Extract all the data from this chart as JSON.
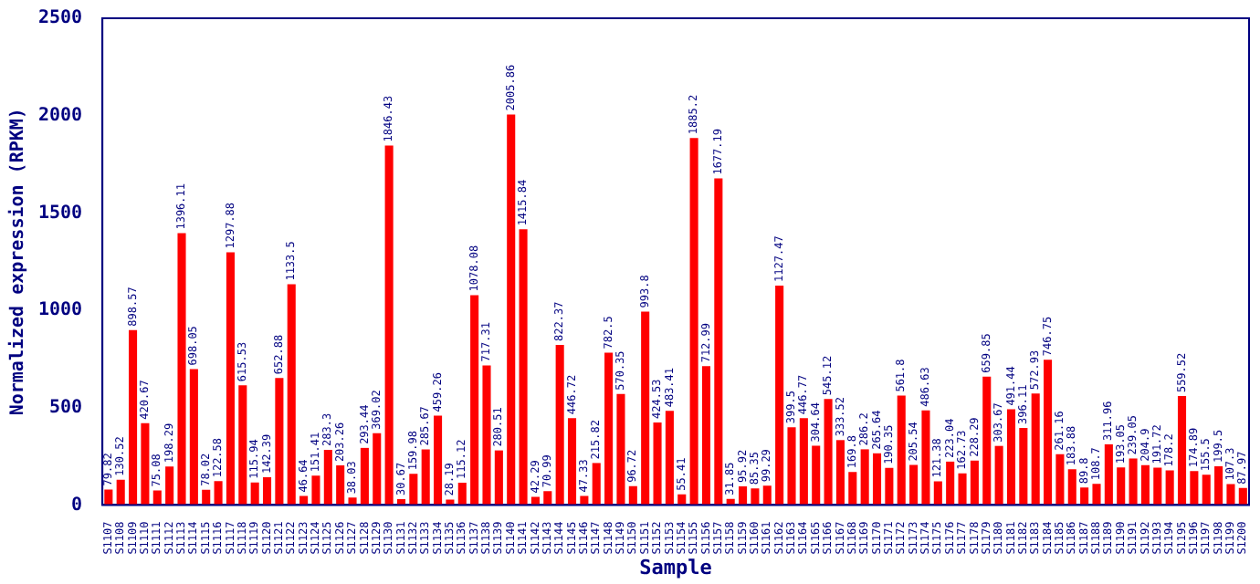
{
  "chart_data": {
    "type": "bar",
    "xlabel": "Sample",
    "ylabel": "Normalized expression (RPKM)",
    "categories": [
      "S1107",
      "S1108",
      "S1109",
      "S1110",
      "S1111",
      "S1112",
      "S1113",
      "S1114",
      "S1115",
      "S1116",
      "S1117",
      "S1118",
      "S1119",
      "S1120",
      "S1121",
      "S1122",
      "S1123",
      "S1124",
      "S1125",
      "S1126",
      "S1127",
      "S1128",
      "S1129",
      "S1130",
      "S1131",
      "S1132",
      "S1133",
      "S1134",
      "S1135",
      "S1136",
      "S1137",
      "S1138",
      "S1139",
      "S1140",
      "S1141",
      "S1142",
      "S1143",
      "S1144",
      "S1145",
      "S1146",
      "S1147",
      "S1148",
      "S1149",
      "S1150",
      "S1151",
      "S1152",
      "S1153",
      "S1154",
      "S1155",
      "S1156",
      "S1157",
      "S1158",
      "S1159",
      "S1160",
      "S1161",
      "S1162",
      "S1163",
      "S1164",
      "S1165",
      "S1166",
      "S1167",
      "S1168",
      "S1169",
      "S1170",
      "S1171",
      "S1172",
      "S1173",
      "S1174",
      "S1175",
      "S1176",
      "S1177",
      "S1178",
      "S1179",
      "S1180",
      "S1181",
      "S1182",
      "S1183",
      "S1184",
      "S1185",
      "S1186",
      "S1187",
      "S1188",
      "S1189",
      "S1190",
      "S1191",
      "S1192",
      "S1193",
      "S1194",
      "S1195",
      "S1196",
      "S1197",
      "S1198",
      "S1199",
      "S1200"
    ],
    "values": [
      79.82,
      130.52,
      898.57,
      420.67,
      75.08,
      198.29,
      1396.11,
      698.05,
      78.02,
      122.58,
      1297.88,
      615.53,
      115.94,
      142.39,
      652.88,
      1133.5,
      46.64,
      151.41,
      283.3,
      203.26,
      38.03,
      293.44,
      369.02,
      1846.43,
      30.67,
      159.98,
      285.67,
      459.26,
      28.19,
      115.12,
      1078.08,
      717.31,
      280.51,
      2005.86,
      1415.84,
      42.29,
      70.99,
      822.37,
      446.72,
      47.33,
      215.82,
      782.5,
      570.35,
      96.72,
      993.8,
      424.53,
      483.41,
      55.41,
      1885.2,
      712.99,
      1677.19,
      31.85,
      95.92,
      85.35,
      99.29,
      1127.47,
      399.5,
      446.77,
      304.64,
      545.12,
      333.52,
      169.8,
      286.2,
      265.64,
      190.35,
      561.8,
      205.54,
      486.63,
      121.38,
      223.04,
      162.73,
      228.29,
      659.85,
      303.67,
      491.44,
      396.11,
      572.93,
      746.75,
      261.16,
      183.88,
      89.8,
      108.7,
      311.96,
      193.05,
      239.05,
      204.9,
      191.72,
      178.2,
      559.52,
      174.89,
      155.5,
      199.5,
      107.3,
      87.97
    ],
    "color": "#ff0000",
    "ylim": [
      0,
      2500
    ],
    "yticks": [
      0,
      500,
      1000,
      1500,
      2000,
      2500
    ],
    "grid": false,
    "legend": false,
    "data_labels": true
  }
}
